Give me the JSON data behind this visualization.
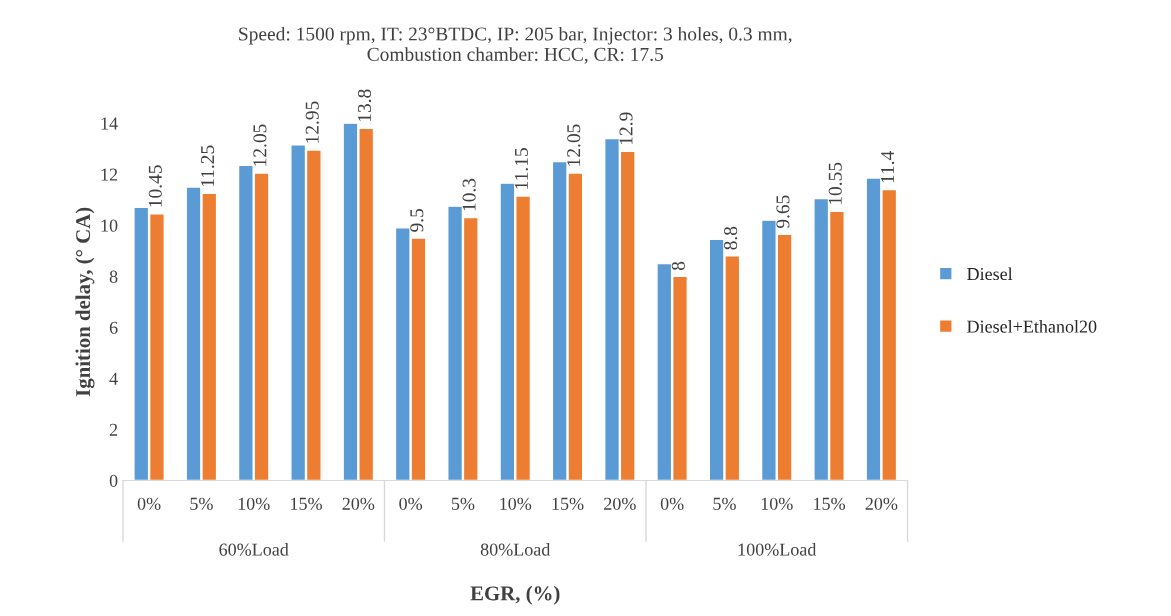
{
  "chart_data": {
    "type": "bar",
    "title": "Speed: 1500 rpm, IT: 23°BTDC, IP: 205 bar, Injector: 3 holes, 0.3 mm,\nCombustion chamber: HCC, CR: 17.5",
    "xlabel": "EGR, (%)",
    "ylabel": "Ignition delay, (° CA)",
    "categories": [
      "0%",
      "5%",
      "10%",
      "15%",
      "20%",
      "0%",
      "5%",
      "10%",
      "15%",
      "20%",
      "0%",
      "5%",
      "10%",
      "15%",
      "20%"
    ],
    "series": [
      {
        "name": "Diesel",
        "color": "#5b9bd5",
        "values": [
          10.7,
          11.5,
          12.35,
          13.15,
          14.0,
          9.9,
          10.75,
          11.65,
          12.5,
          13.4,
          8.5,
          9.45,
          10.2,
          11.05,
          11.85
        ]
      },
      {
        "name": "Diesel+Ethanol20",
        "color": "#ed7d31",
        "values": [
          10.45,
          11.25,
          12.05,
          12.95,
          13.8,
          9.5,
          10.3,
          11.15,
          12.05,
          12.9,
          8,
          8.8,
          9.65,
          10.55,
          11.4
        ],
        "value_labels": [
          "10.45",
          "11.25",
          "12.05",
          "12.95",
          "13.8",
          "9.5",
          "10.3",
          "11.15",
          "12.05",
          "12.9",
          "8",
          "8.8",
          "9.65",
          "10.55",
          "11.4"
        ]
      }
    ],
    "annotations": [
      "60%Load",
      "80%Load",
      "100%Load"
    ],
    "ylim": [
      0,
      14
    ],
    "yticks": [
      0,
      2,
      4,
      6,
      8,
      10,
      12,
      14
    ],
    "grid": false,
    "legend": "right"
  }
}
